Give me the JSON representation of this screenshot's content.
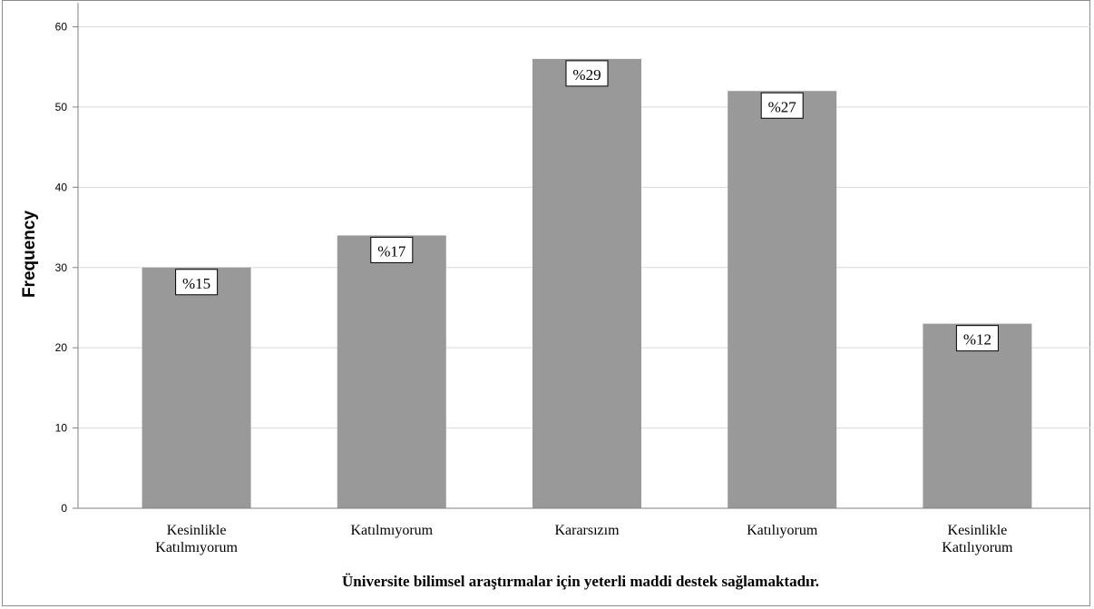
{
  "chart_data": {
    "type": "bar",
    "title": "",
    "categories": [
      [
        "Kesinlikle",
        "Katılmıyorum"
      ],
      [
        "Katılmıyorum"
      ],
      [
        "Kararsızım"
      ],
      [
        "Katılıyorum"
      ],
      [
        "Kesinlikle",
        "Katılıyorum"
      ]
    ],
    "values": [
      30,
      34,
      56,
      52,
      23
    ],
    "data_labels": [
      "%15",
      "%17",
      "%29",
      "%27",
      "%12"
    ],
    "xlabel": "Üniversite bilimsel araştırmalar için yeterli maddi destek sağlamaktadır.",
    "ylabel": "Frequency",
    "ylim": [
      0,
      60
    ],
    "yticks": [
      0,
      10,
      20,
      30,
      40,
      50,
      60
    ],
    "grid": true,
    "legend": "none",
    "colors": {
      "bar": "#999999",
      "grid": "#d9d9d9",
      "axis": "#808080",
      "frame": "#8c8c8c"
    }
  }
}
